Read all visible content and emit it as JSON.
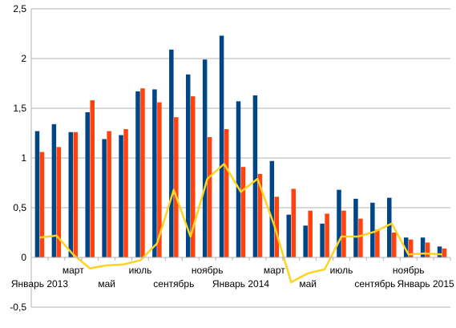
{
  "chart_data": {
    "type": "bar",
    "title": "",
    "xlabel": "",
    "ylabel": "",
    "ylim": [
      -0.5,
      2.5
    ],
    "yticks": [
      -0.5,
      0,
      0.5,
      1,
      1.5,
      2,
      2.5
    ],
    "ytick_labels": [
      "-0,5",
      "0",
      "0,5",
      "1",
      "1,5",
      "2",
      "2,5"
    ],
    "grid": true,
    "legend": "none",
    "categories": [
      "Январь 2013",
      "",
      "март",
      "",
      "май",
      "",
      "июль",
      "",
      "сентябрь",
      "",
      "ноябрь",
      "",
      "Январь 2014",
      "",
      "март",
      "",
      "май",
      "",
      "июль",
      "",
      "сентябрь",
      "",
      "ноябрь",
      "",
      "Январь 2015"
    ],
    "colors": {
      "series1": "#004586",
      "series2": "#ff420e",
      "series3": "#ffd320"
    },
    "series": [
      {
        "kind": "bar",
        "values": [
          1.27,
          1.34,
          1.26,
          1.46,
          1.19,
          1.23,
          1.67,
          1.69,
          2.09,
          1.84,
          1.99,
          2.23,
          1.57,
          1.63,
          0.97,
          0.43,
          0.32,
          0.34,
          0.68,
          0.59,
          0.55,
          0.6,
          0.2,
          0.2,
          0.11
        ]
      },
      {
        "kind": "bar",
        "values": [
          1.06,
          1.11,
          1.26,
          1.58,
          1.27,
          1.29,
          1.7,
          1.56,
          1.41,
          1.62,
          1.21,
          1.29,
          0.91,
          0.84,
          0.61,
          0.69,
          0.47,
          0.44,
          0.47,
          0.39,
          0.28,
          0.25,
          0.18,
          0.15,
          0.09
        ]
      },
      {
        "kind": "line",
        "values": [
          0.2,
          0.22,
          0.03,
          -0.11,
          -0.08,
          -0.07,
          -0.03,
          0.14,
          0.68,
          0.21,
          0.79,
          0.94,
          0.66,
          0.79,
          0.32,
          -0.25,
          -0.16,
          -0.12,
          0.21,
          0.21,
          0.26,
          0.34,
          0.03,
          0.04,
          0.03
        ]
      }
    ]
  }
}
